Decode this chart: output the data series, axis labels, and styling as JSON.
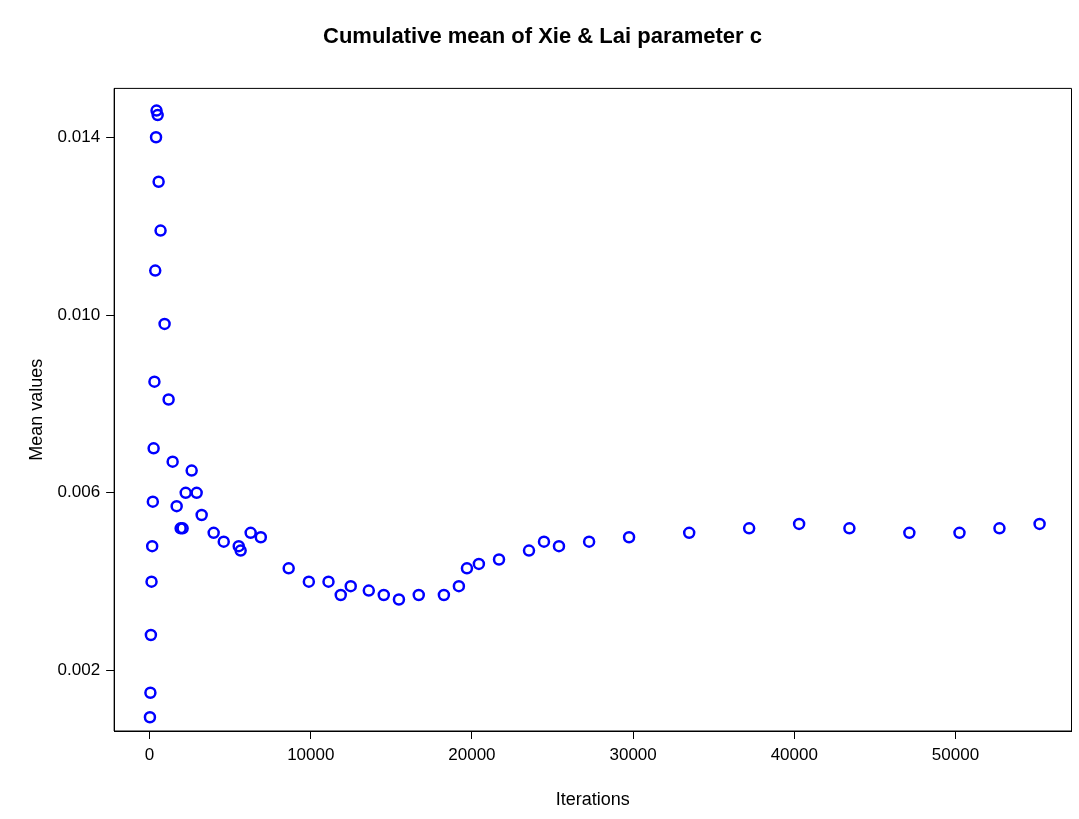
{
  "chart_data": {
    "type": "scatter",
    "title": "Cumulative mean of Xie & Lai parameter c",
    "xlabel": "Iterations",
    "ylabel": "Mean values",
    "xlim": [
      -2200,
      57200
    ],
    "ylim": [
      0.00064,
      0.0151
    ],
    "xticks": [
      0,
      10000,
      20000,
      30000,
      40000,
      50000
    ],
    "yticks": [
      0.002,
      0.006,
      {
        "value": 0.01,
        "label": "0.010"
      },
      0.014
    ],
    "grid": false,
    "legend": false,
    "marker": "circle",
    "series": [
      {
        "color": "#0000ff",
        "x": [
          20,
          50,
          80,
          120,
          160,
          200,
          250,
          300,
          350,
          400,
          430,
          500,
          560,
          680,
          930,
          1180,
          1430,
          1680,
          1925,
          2050,
          2240,
          2610,
          2920,
          3230,
          3975,
          4600,
          5530,
          5650,
          6270,
          6900,
          8630,
          9880,
          11100,
          11860,
          12480,
          13600,
          14530,
          15470,
          16700,
          18260,
          19190,
          19690,
          20430,
          21680,
          23540,
          24470,
          25400,
          27270,
          29750,
          33480,
          37200,
          40300,
          43420,
          47140,
          50250,
          52730,
          55220
        ],
        "values": [
          0.00095,
          0.0015,
          0.0028,
          0.004,
          0.0048,
          0.0058,
          0.007,
          0.0085,
          0.011,
          0.014,
          0.0146,
          0.0145,
          0.013,
          0.0119,
          0.0098,
          0.0081,
          0.0067,
          0.0057,
          0.0052,
          0.0052,
          0.006,
          0.0065,
          0.006,
          0.0055,
          0.0051,
          0.0049,
          0.0048,
          0.0047,
          0.0051,
          0.005,
          0.0043,
          0.004,
          0.004,
          0.0037,
          0.0039,
          0.0038,
          0.0037,
          0.0036,
          0.0037,
          0.0037,
          0.0039,
          0.0043,
          0.0044,
          0.0045,
          0.0047,
          0.0049,
          0.0048,
          0.0049,
          0.005,
          0.0051,
          0.0052,
          0.0053,
          0.0052,
          0.0051,
          0.0051,
          0.0052,
          0.0053
        ]
      }
    ]
  }
}
